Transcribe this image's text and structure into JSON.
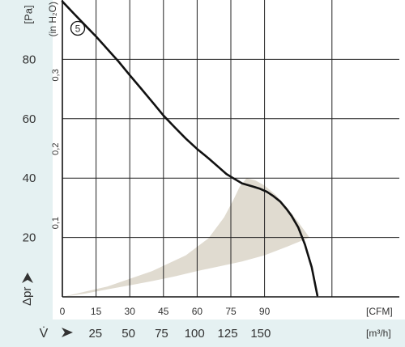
{
  "chart_data": {
    "type": "line",
    "title": "",
    "xlabel": "V̇",
    "ylabel": "Δpr",
    "curve_label": "5",
    "x_axis": {
      "unit": "[CFM]",
      "range": [
        0,
        150
      ],
      "ticks": [
        0,
        15,
        30,
        45,
        60,
        75,
        90
      ]
    },
    "x2_axis": {
      "unit": "[m³/h]",
      "ticks": [
        25,
        50,
        75,
        100,
        125,
        150
      ]
    },
    "y_axis": {
      "unit": "[Pa]",
      "range": [
        0,
        100
      ],
      "ticks": [
        20,
        40,
        60,
        80
      ]
    },
    "y2_axis": {
      "unit": "(in H₂O)",
      "ticks": [
        "0,1",
        "0,2",
        "0,3"
      ],
      "tick_values_pa": [
        24.9,
        49.8,
        74.7
      ]
    },
    "grid": true,
    "series": [
      {
        "name": "5",
        "x": [
          0,
          5,
          10,
          15,
          20,
          25,
          30,
          35,
          40,
          45,
          50,
          55,
          60,
          65,
          70,
          73,
          76,
          80,
          85,
          88,
          91,
          94,
          97,
          100,
          102,
          105,
          108,
          111,
          113.5
        ],
        "y": [
          99.5,
          95.5,
          91.6,
          87.7,
          83.5,
          79.3,
          74.7,
          70.2,
          65.7,
          61.1,
          57.1,
          53.3,
          49.8,
          46.7,
          43.4,
          41.4,
          40.0,
          38.2,
          37.1,
          36.4,
          35.4,
          33.9,
          32.1,
          29.4,
          27.3,
          23.4,
          17.6,
          10.0,
          0.5
        ]
      }
    ],
    "shaded_region": {
      "upper": {
        "x": [
          0,
          20,
          40,
          55,
          65,
          72,
          76,
          79,
          82,
          86,
          90,
          95,
          100,
          105,
          110
        ],
        "y": [
          0,
          3.5,
          8.7,
          14.0,
          19.7,
          26.8,
          32.5,
          37.2,
          40.0,
          39.2,
          37.5,
          34.3,
          30.1,
          25.2,
          20.0
        ]
      },
      "lower": {
        "x": [
          110,
          100,
          90,
          80,
          70,
          60,
          50,
          40,
          30,
          20,
          10,
          0
        ],
        "y": [
          20.0,
          16.9,
          14.0,
          11.9,
          10.3,
          8.7,
          6.9,
          5.3,
          3.9,
          2.5,
          1.1,
          0
        ]
      }
    },
    "colors": {
      "curve": "#111111",
      "grid": "#222222",
      "shade": "#e0dbd0",
      "panel": "#e5f1f2",
      "text": "#333333"
    }
  }
}
